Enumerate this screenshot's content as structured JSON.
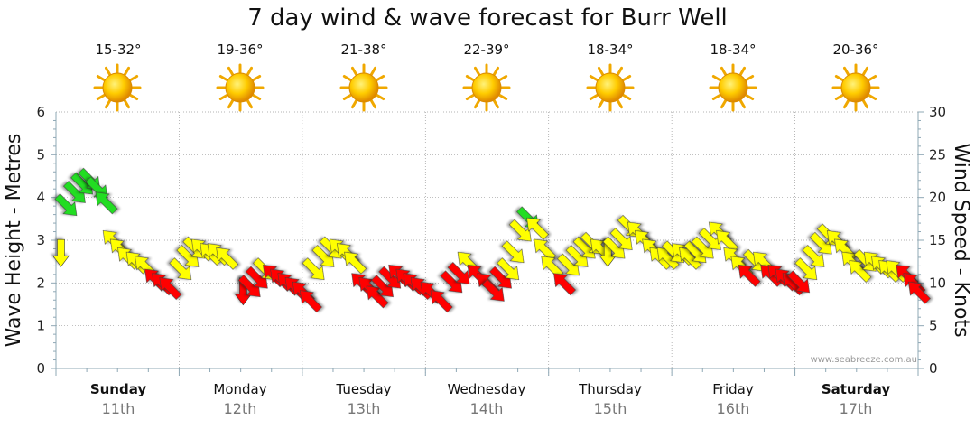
{
  "title": "7 day wind & wave forecast for Burr Well",
  "watermark": "www.seabreeze.com.au",
  "y_left_label": "Wave Height - Metres",
  "y_right_label": "Wind Speed - Knots",
  "colors": {
    "low": "#ffff00",
    "mid": "#ff0000",
    "high": "#22dd22",
    "grid": "#9a9a9a",
    "axis": "#8fa8b5"
  },
  "days": [
    {
      "name": "Sunday",
      "date": "11th",
      "temp": "15-32°",
      "bold": true
    },
    {
      "name": "Monday",
      "date": "12th",
      "temp": "19-36°",
      "bold": false
    },
    {
      "name": "Tuesday",
      "date": "13th",
      "temp": "21-38°",
      "bold": false
    },
    {
      "name": "Wednesday",
      "date": "14th",
      "temp": "22-39°",
      "bold": false
    },
    {
      "name": "Thursday",
      "date": "15th",
      "temp": "18-34°",
      "bold": false
    },
    {
      "name": "Friday",
      "date": "16th",
      "temp": "18-34°",
      "bold": false
    },
    {
      "name": "Saturday",
      "date": "17th",
      "temp": "20-36°",
      "bold": true
    }
  ],
  "chart_data": {
    "type": "scatter",
    "x_unit": "days from start of chart",
    "xlim": [
      0,
      7
    ],
    "ylim_left": [
      0,
      6
    ],
    "ylim_right": [
      0,
      30
    ],
    "left_ticks": [
      "0",
      "1",
      "2",
      "3",
      "4",
      "5",
      "6"
    ],
    "right_ticks": [
      "0",
      "5",
      "10",
      "15",
      "20",
      "25",
      "30"
    ],
    "grid": true,
    "series": [
      {
        "values": [
          [
            0.04,
            13.5,
            "S"
          ],
          [
            0.09,
            19,
            "SE"
          ],
          [
            0.16,
            20.5,
            "SE"
          ],
          [
            0.22,
            21.5,
            "SE"
          ],
          [
            0.28,
            22,
            "SE"
          ],
          [
            0.34,
            21,
            "SE"
          ],
          [
            0.4,
            19.5,
            "NW"
          ],
          [
            0.46,
            15,
            "NW"
          ],
          [
            0.52,
            14,
            "NW"
          ],
          [
            0.58,
            13,
            "NW"
          ],
          [
            0.65,
            12.5,
            "NW"
          ],
          [
            0.72,
            12,
            "NW"
          ],
          [
            0.8,
            10.5,
            "NW"
          ],
          [
            0.86,
            10,
            "NW"
          ],
          [
            0.92,
            9.5,
            "NW"
          ],
          [
            1.02,
            11.5,
            "SE"
          ],
          [
            1.08,
            13,
            "SE"
          ],
          [
            1.13,
            14,
            "SE"
          ],
          [
            1.18,
            14,
            "NW"
          ],
          [
            1.25,
            13.5,
            "NW"
          ],
          [
            1.31,
            13.5,
            "NW"
          ],
          [
            1.38,
            13,
            "NW"
          ],
          [
            1.52,
            9,
            "S"
          ],
          [
            1.58,
            9.5,
            "SE"
          ],
          [
            1.64,
            10.5,
            "SE"
          ],
          [
            1.7,
            11.5,
            "SE"
          ],
          [
            1.76,
            11,
            "NW"
          ],
          [
            1.82,
            10.5,
            "NW"
          ],
          [
            1.88,
            10,
            "NW"
          ],
          [
            1.94,
            9.5,
            "NW"
          ],
          [
            2.0,
            9,
            "NW"
          ],
          [
            2.06,
            8,
            "NW"
          ],
          [
            2.1,
            11.5,
            "SE"
          ],
          [
            2.18,
            13,
            "SE"
          ],
          [
            2.24,
            14,
            "SE"
          ],
          [
            2.3,
            14,
            "NW"
          ],
          [
            2.36,
            13.5,
            "NW"
          ],
          [
            2.42,
            12.5,
            "NW"
          ],
          [
            2.48,
            10,
            "NW"
          ],
          [
            2.54,
            9.5,
            "NW"
          ],
          [
            2.6,
            8.5,
            "NW"
          ],
          [
            2.66,
            9.5,
            "SE"
          ],
          [
            2.72,
            10.5,
            "SE"
          ],
          [
            2.78,
            11,
            "NW"
          ],
          [
            2.84,
            10.5,
            "NW"
          ],
          [
            2.9,
            10,
            "NW"
          ],
          [
            2.96,
            9.5,
            "NW"
          ],
          [
            3.04,
            9,
            "NW"
          ],
          [
            3.12,
            8,
            "NW"
          ],
          [
            3.22,
            10,
            "SE"
          ],
          [
            3.28,
            11,
            "SE"
          ],
          [
            3.34,
            12.5,
            "NW"
          ],
          [
            3.42,
            11,
            "NW"
          ],
          [
            3.5,
            10,
            "NW"
          ],
          [
            3.56,
            9,
            "SE"
          ],
          [
            3.62,
            10.5,
            "SE"
          ],
          [
            3.68,
            11.5,
            "SE"
          ],
          [
            3.72,
            13.5,
            "SE"
          ],
          [
            3.78,
            16,
            "SE"
          ],
          [
            3.84,
            17.5,
            "SE"
          ],
          [
            3.9,
            16.5,
            "NW"
          ],
          [
            3.96,
            14,
            "NW"
          ],
          [
            4.02,
            12,
            "NW"
          ],
          [
            4.12,
            10,
            "NW"
          ],
          [
            4.17,
            12,
            "SE"
          ],
          [
            4.24,
            13,
            "SE"
          ],
          [
            4.3,
            14,
            "SE"
          ],
          [
            4.36,
            14.5,
            "SE"
          ],
          [
            4.42,
            14,
            "NW"
          ],
          [
            4.48,
            13.5,
            "S"
          ],
          [
            4.54,
            14,
            "SE"
          ],
          [
            4.6,
            15,
            "SE"
          ],
          [
            4.66,
            16.5,
            "SE"
          ],
          [
            4.72,
            16,
            "NW"
          ],
          [
            4.78,
            15,
            "NW"
          ],
          [
            4.84,
            14,
            "NW"
          ],
          [
            4.9,
            13,
            "NW"
          ],
          [
            4.96,
            13,
            "NW"
          ],
          [
            5.02,
            13.5,
            "SE"
          ],
          [
            5.08,
            13.5,
            "NW"
          ],
          [
            5.14,
            13,
            "NW"
          ],
          [
            5.2,
            13.5,
            "SE"
          ],
          [
            5.26,
            14,
            "SE"
          ],
          [
            5.32,
            15,
            "SE"
          ],
          [
            5.38,
            16,
            "NW"
          ],
          [
            5.44,
            15,
            "NW"
          ],
          [
            5.5,
            13,
            "NW"
          ],
          [
            5.56,
            12,
            "NW"
          ],
          [
            5.62,
            11,
            "NW"
          ],
          [
            5.68,
            12.5,
            "SE"
          ],
          [
            5.74,
            12.5,
            "NW"
          ],
          [
            5.8,
            11,
            "NW"
          ],
          [
            5.86,
            11,
            "NW"
          ],
          [
            5.92,
            10.5,
            "NW"
          ],
          [
            5.98,
            10,
            "NW"
          ],
          [
            6.04,
            10,
            "SE"
          ],
          [
            6.1,
            11.5,
            "SE"
          ],
          [
            6.16,
            13,
            "SE"
          ],
          [
            6.22,
            14.5,
            "SE"
          ],
          [
            6.28,
            15.5,
            "SE"
          ],
          [
            6.34,
            15,
            "NW"
          ],
          [
            6.4,
            14,
            "NW"
          ],
          [
            6.46,
            12.5,
            "NW"
          ],
          [
            6.52,
            11.5,
            "NW"
          ],
          [
            6.58,
            12.5,
            "SE"
          ],
          [
            6.64,
            12.5,
            "NW"
          ],
          [
            6.7,
            12,
            "NW"
          ],
          [
            6.76,
            11.5,
            "NW"
          ],
          [
            6.82,
            11.5,
            "NW"
          ],
          [
            6.9,
            11,
            "NW"
          ],
          [
            6.96,
            10,
            "NW"
          ],
          [
            7.0,
            9,
            "NW"
          ]
        ]
      }
    ]
  }
}
